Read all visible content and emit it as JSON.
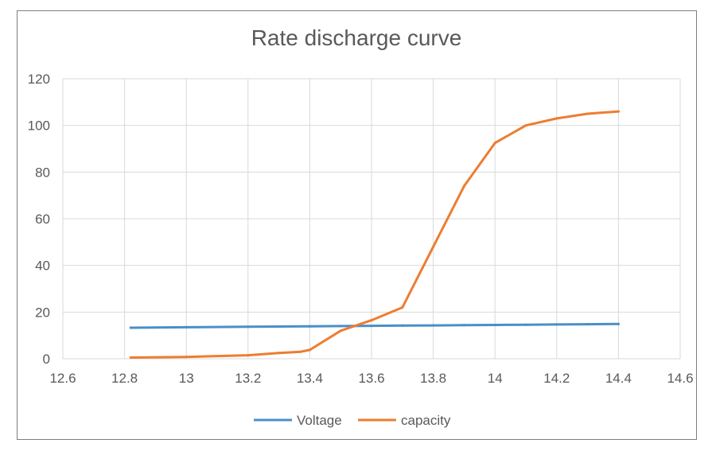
{
  "chart_data": {
    "type": "scatter",
    "title": "Rate discharge curve",
    "xlabel": "",
    "ylabel": "",
    "xlim": [
      12.6,
      14.6
    ],
    "ylim": [
      0,
      120
    ],
    "xticks": [
      "12.6",
      "12.8",
      "13",
      "13.2",
      "13.4",
      "13.6",
      "13.8",
      "14",
      "14.2",
      "14.4",
      "14.6"
    ],
    "yticks": [
      "0",
      "20",
      "40",
      "60",
      "80",
      "100",
      "120"
    ],
    "grid": true,
    "legend_position": "bottom",
    "series": [
      {
        "name": "Voltage",
        "color": "#4a8fc9",
        "x": [
          12.82,
          13.0,
          13.2,
          13.3,
          13.4,
          13.5,
          13.6,
          13.7,
          13.8,
          13.9,
          14.0,
          14.1,
          14.2,
          14.3,
          14.4
        ],
        "y": [
          13.3,
          13.5,
          13.7,
          13.8,
          13.9,
          14.0,
          14.1,
          14.2,
          14.3,
          14.4,
          14.5,
          14.6,
          14.7,
          14.8,
          14.9
        ]
      },
      {
        "name": "capacity",
        "color": "#ed7d31",
        "x": [
          12.82,
          13.0,
          13.2,
          13.3,
          13.37,
          13.4,
          13.5,
          13.6,
          13.7,
          13.8,
          13.9,
          14.0,
          14.1,
          14.2,
          14.3,
          14.4
        ],
        "y": [
          0.5,
          0.8,
          1.5,
          2.5,
          3.0,
          3.8,
          12.0,
          16.5,
          22.0,
          48.0,
          74.0,
          92.5,
          100.0,
          103.0,
          105.0,
          106.0
        ]
      }
    ]
  }
}
